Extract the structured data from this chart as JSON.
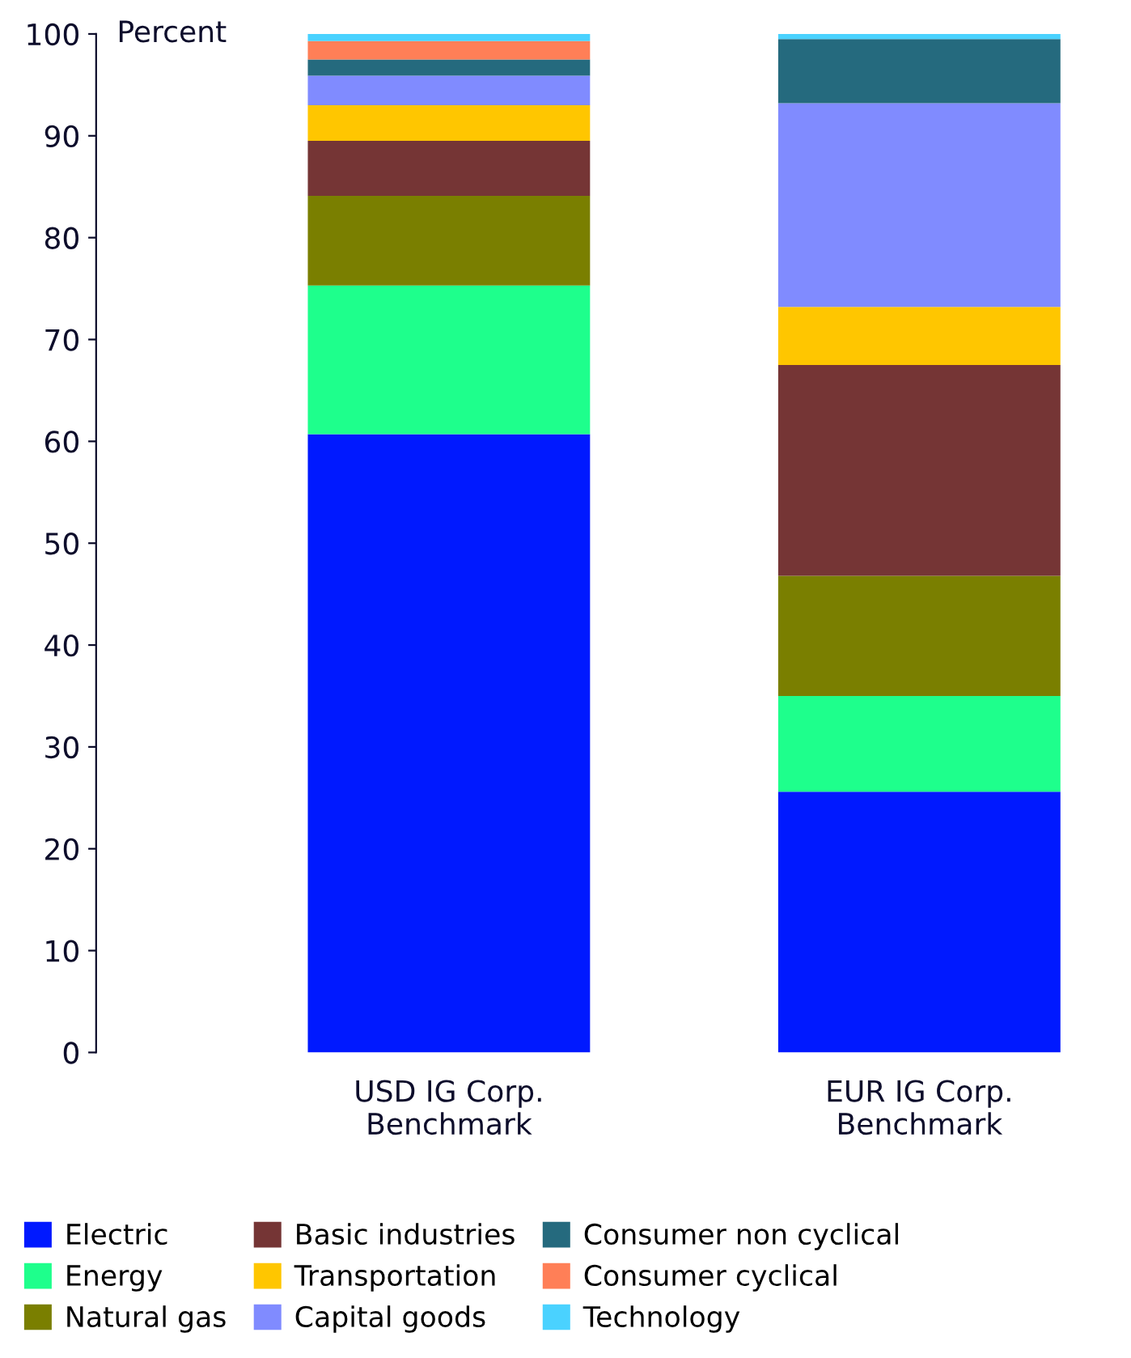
{
  "chart_data": {
    "type": "bar",
    "stacked": true,
    "ylabel": "Percent",
    "categories": [
      "USD IG Corp.\nBenchmark",
      "EUR IG Corp.\nBenchmark"
    ],
    "series": [
      {
        "name": "Electric",
        "color": "#0019ff",
        "values": [
          60.7,
          25.6
        ]
      },
      {
        "name": "Energy",
        "color": "#1eff8c",
        "values": [
          14.6,
          9.4
        ]
      },
      {
        "name": "Natural gas",
        "color": "#7a7f00",
        "values": [
          8.8,
          11.8
        ]
      },
      {
        "name": "Basic industries",
        "color": "#753535",
        "values": [
          5.4,
          20.7
        ]
      },
      {
        "name": "Transportation",
        "color": "#ffc600",
        "values": [
          3.5,
          5.7
        ]
      },
      {
        "name": "Capital goods",
        "color": "#808bff",
        "values": [
          2.9,
          20.0
        ]
      },
      {
        "name": "Consumer non cyclical",
        "color": "#256a7e",
        "values": [
          1.6,
          6.3
        ]
      },
      {
        "name": "Consumer cyclical",
        "color": "#ff7f57",
        "values": [
          1.8,
          0
        ]
      },
      {
        "name": "Technology",
        "color": "#4ad2ff",
        "values": [
          1.0,
          0.8
        ]
      }
    ],
    "ylim": [
      0,
      100
    ],
    "yticks": [
      0,
      10,
      20,
      30,
      40,
      50,
      60,
      70,
      80,
      90,
      100
    ],
    "grid": false,
    "legend": "bottom"
  }
}
